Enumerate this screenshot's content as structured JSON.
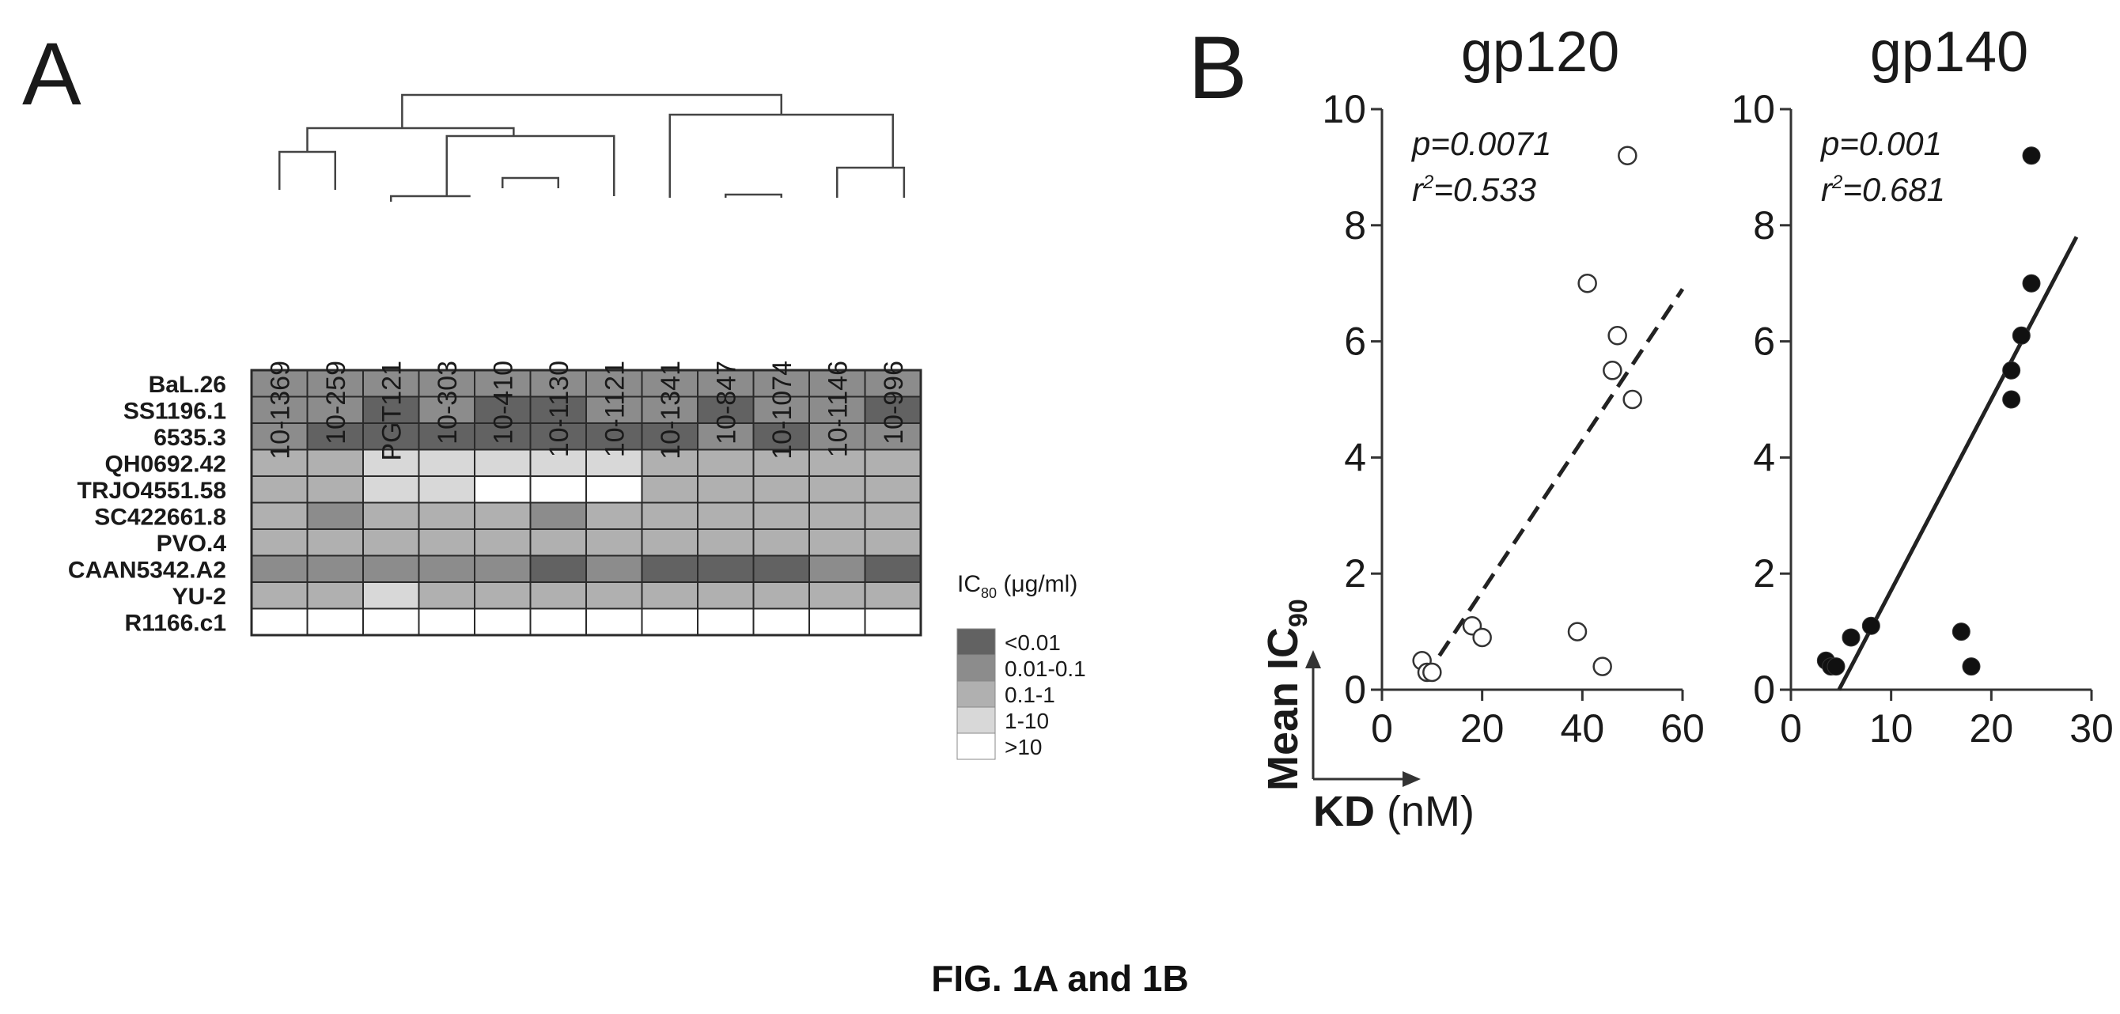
{
  "figure": {
    "caption": "FIG. 1A and 1B"
  },
  "colors": {
    "lt0.01": "#626262",
    "0.01-0.1": "#8c8c8c",
    "0.1-1": "#b0b0b0",
    "1-10": "#d8d8d8",
    "gt10": "#ffffff"
  },
  "chart_data": [
    {
      "panel": "A",
      "type": "heatmap",
      "columns": [
        "10-1369",
        "10-259",
        "PGT121",
        "10-303",
        "10-410",
        "10-1130",
        "10-1121",
        "10-1341",
        "10-847",
        "10-1074",
        "10-1146",
        "10-996"
      ],
      "rows": [
        "BaL.26",
        "SS1196.1",
        "6535.3",
        "QH0692.42",
        "TRJO4551.58",
        "SC422661.8",
        "PVO.4",
        "CAAN5342.A2",
        "YU-2",
        "R1166.c1"
      ],
      "cells": [
        [
          "0.01-0.1",
          "0.01-0.1",
          "0.01-0.1",
          "0.01-0.1",
          "0.01-0.1",
          "0.01-0.1",
          "0.01-0.1",
          "0.01-0.1",
          "0.01-0.1",
          "0.01-0.1",
          "0.01-0.1",
          "0.01-0.1"
        ],
        [
          "0.01-0.1",
          "0.01-0.1",
          "<0.01",
          "0.01-0.1",
          "<0.01",
          "<0.01",
          "0.01-0.1",
          "0.01-0.1",
          "<0.01",
          "0.01-0.1",
          "0.01-0.1",
          "<0.01"
        ],
        [
          "0.01-0.1",
          "<0.01",
          "<0.01",
          "<0.01",
          "<0.01",
          "<0.01",
          "<0.01",
          "<0.01",
          "0.01-0.1",
          "<0.01",
          "0.01-0.1",
          "0.01-0.1"
        ],
        [
          "0.1-1",
          "0.1-1",
          "1-10",
          "1-10",
          "1-10",
          "1-10",
          "1-10",
          "0.1-1",
          "0.1-1",
          "0.1-1",
          "0.1-1",
          "0.1-1"
        ],
        [
          "0.1-1",
          "0.1-1",
          "1-10",
          "1-10",
          ">10",
          ">10",
          ">10",
          "0.1-1",
          "0.1-1",
          "0.1-1",
          "0.1-1",
          "0.1-1"
        ],
        [
          "0.1-1",
          "0.01-0.1",
          "0.1-1",
          "0.1-1",
          "0.1-1",
          "0.01-0.1",
          "0.1-1",
          "0.1-1",
          "0.1-1",
          "0.1-1",
          "0.1-1",
          "0.1-1"
        ],
        [
          "0.1-1",
          "0.1-1",
          "0.1-1",
          "0.1-1",
          "0.1-1",
          "0.1-1",
          "0.1-1",
          "0.1-1",
          "0.1-1",
          "0.1-1",
          "0.1-1",
          "0.1-1"
        ],
        [
          "0.01-0.1",
          "0.01-0.1",
          "0.01-0.1",
          "0.01-0.1",
          "0.01-0.1",
          "<0.01",
          "0.01-0.1",
          "<0.01",
          "<0.01",
          "<0.01",
          "0.01-0.1",
          "<0.01"
        ],
        [
          "0.1-1",
          "0.1-1",
          "1-10",
          "0.1-1",
          "0.1-1",
          "0.1-1",
          "0.1-1",
          "0.1-1",
          "0.1-1",
          "0.1-1",
          "0.1-1",
          "0.1-1"
        ],
        [
          ">10",
          ">10",
          ">10",
          ">10",
          ">10",
          ">10",
          ">10",
          ">10",
          ">10",
          ">10",
          ">10",
          ">10"
        ]
      ],
      "legend": {
        "title_main": "IC",
        "title_sub": "80",
        "title_rest": " (μg/ml)",
        "bins": [
          "<0.01",
          "0.01-0.1",
          "0.1-1",
          "1-10",
          ">10"
        ]
      }
    },
    {
      "panel": "B",
      "type": "scatter",
      "title": "gp120",
      "annotation_p": "p=0.0071",
      "annotation_r_pre": "r",
      "annotation_r_sup": "2",
      "annotation_r_post": "=0.533",
      "xlim": [
        0,
        60
      ],
      "ylim": [
        0,
        10
      ],
      "xticks": [
        0,
        20,
        40,
        60
      ],
      "yticks": [
        0,
        2,
        4,
        6,
        8,
        10
      ],
      "marker": "open-circle",
      "fit": "dashed",
      "fit_line": [
        [
          8.5,
          0.2
        ],
        [
          60,
          6.9
        ]
      ],
      "points": [
        [
          8,
          0.5
        ],
        [
          9,
          0.3
        ],
        [
          10,
          0.3
        ],
        [
          18,
          1.1
        ],
        [
          20,
          0.9
        ],
        [
          41,
          7.0
        ],
        [
          47,
          6.1
        ],
        [
          46,
          5.5
        ],
        [
          50,
          5.0
        ],
        [
          49,
          9.2
        ],
        [
          39,
          1.0
        ],
        [
          44,
          0.4
        ]
      ]
    },
    {
      "panel": "B",
      "type": "scatter",
      "title": "gp140",
      "annotation_p": "p=0.001",
      "annotation_r_pre": "r",
      "annotation_r_sup": "2",
      "annotation_r_post": "=0.681",
      "xlim": [
        0,
        30
      ],
      "ylim": [
        0,
        10
      ],
      "xticks": [
        0,
        10,
        20,
        30
      ],
      "yticks": [
        0,
        2,
        4,
        6,
        8,
        10
      ],
      "marker": "filled-circle",
      "fit": "solid",
      "fit_line": [
        [
          4.8,
          0
        ],
        [
          28.5,
          7.8
        ]
      ],
      "points": [
        [
          3.5,
          0.5
        ],
        [
          4,
          0.4
        ],
        [
          4.5,
          0.4
        ],
        [
          6,
          0.9
        ],
        [
          8,
          1.1
        ],
        [
          17,
          1.0
        ],
        [
          18,
          0.4
        ],
        [
          22,
          5.5
        ],
        [
          22,
          5.0
        ],
        [
          23,
          6.1
        ],
        [
          24,
          7.0
        ],
        [
          24,
          9.2
        ]
      ]
    }
  ],
  "panel_b_axes": {
    "ylabel_main": "Mean IC",
    "ylabel_sub": "90",
    "xlabel_main": "KD",
    "xlabel_unit": " (nM)"
  },
  "panel_labels": {
    "a": "A",
    "b": "B"
  }
}
